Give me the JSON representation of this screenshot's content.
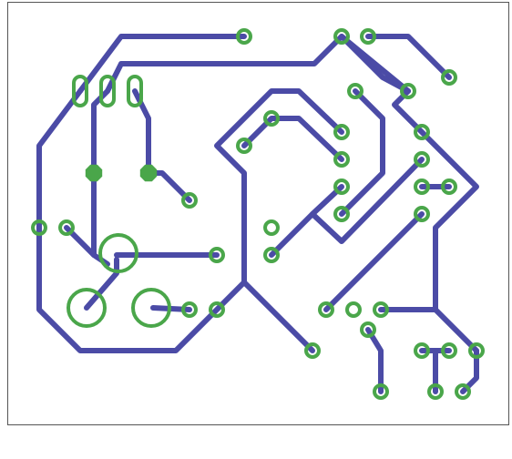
{
  "board": {
    "trace_color": "#4b4ba6",
    "pad_color": "#4aa64a",
    "background": "#ffffff",
    "outline_color": "#555555"
  }
}
